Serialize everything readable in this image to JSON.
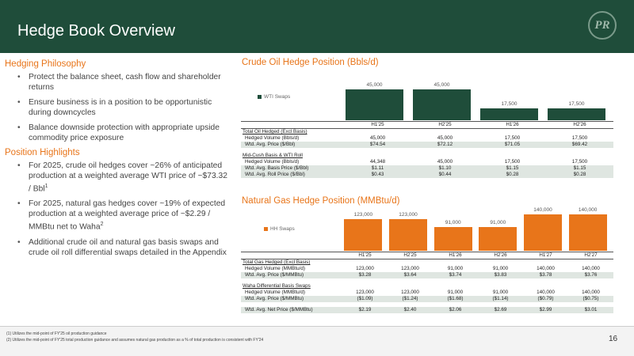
{
  "title": "Hedge Book Overview",
  "logo_text": "PR",
  "philosophy": {
    "heading": "Hedging Philosophy",
    "bullets": [
      "Protect the balance sheet, cash flow and shareholder returns",
      "Ensure business is in a position to be opportunistic during downcycles",
      "Balance downside protection with appropriate upside commodity price exposure"
    ]
  },
  "highlights": {
    "heading": "Position Highlights",
    "b1": "For 2025, crude oil hedges cover ~26% of anticipated production at a weighted average WTI price of ~$73.32 / Bbl",
    "b1_sup": "1",
    "b2": "For 2025, natural gas hedges cover ~19% of expected production at a weighted average price of ~$2.29 / MMBtu net to Waha",
    "b2_sup": "2",
    "b3": "Additional crude oil and natural gas basis swaps and crude oil roll differential swaps detailed in the Appendix"
  },
  "oil": {
    "title": "Crude Oil Hedge Position (Bbls/d)",
    "legend": "WTI Swaps",
    "total_label": "Total Oil Hedged (Excl Basis)",
    "hv_label": "Hedged Volume (Bbls/d)",
    "hv": [
      "45,000",
      "45,000",
      "17,500",
      "17,500"
    ],
    "price_label": "Wtd. Avg. Price ($/Bbl)",
    "price": [
      "$74.54",
      "$72.12",
      "$71.05",
      "$69.42"
    ],
    "basis_label": "Mid-Cush Basis & WTI Roll",
    "bhv_label": "Hedged Volume (Bbls/d)",
    "bhv": [
      "44,348",
      "45,000",
      "17,500",
      "17,500"
    ],
    "basis_price_label": "Wtd. Avg. Basis Price ($/Bbl)",
    "basis_price": [
      "$1.11",
      "$1.10",
      "$1.15",
      "$1.15"
    ],
    "roll_label": "Wtd. Avg. Roll Price ($/Bbl)",
    "roll": [
      "$0.43",
      "$0.44",
      "$0.28",
      "$0.28"
    ]
  },
  "gas": {
    "title": "Natural Gas Hedge Position (MMBtu/d)",
    "legend": "HH Swaps",
    "total_label": "Total Gas Hedged (Excl Basis)",
    "hv_label": "Hedged Volume (MMBtu/d)",
    "hv": [
      "123,000",
      "123,000",
      "91,000",
      "91,000",
      "140,000",
      "140,000"
    ],
    "price_label": "Wtd. Avg. Price ($/MMBtu)",
    "price": [
      "$3.28",
      "$3.64",
      "$3.74",
      "$3.83",
      "$3.78",
      "$3.76"
    ],
    "waha_label": "Waha Differential Basis Swaps",
    "whv_label": "Hedged Volume (MMBtu/d)",
    "whv": [
      "123,000",
      "123,000",
      "91,000",
      "91,000",
      "140,000",
      "140,000"
    ],
    "wprice_label": "Wtd. Avg. Price ($/MMBtu)",
    "wprice": [
      "($1.09)",
      "($1.24)",
      "($1.68)",
      "($1.14)",
      "($0.79)",
      "($0.75)"
    ],
    "net_label": "Wtd. Avg. Net Price ($/MMBtu)",
    "net": [
      "$2.19",
      "$2.40",
      "$2.06",
      "$2.69",
      "$2.99",
      "$3.01"
    ]
  },
  "chart_data": [
    {
      "type": "bar",
      "title": "Crude Oil Hedge Position (Bbls/d)",
      "categories": [
        "H1'25",
        "H2'25",
        "H1'26",
        "H2'26"
      ],
      "series": [
        {
          "name": "WTI Swaps",
          "values": [
            45000,
            45000,
            17500,
            17500
          ]
        }
      ],
      "labels": [
        "45,000",
        "45,000",
        "17,500",
        "17,500"
      ],
      "color": "#1f4d3a",
      "ylim": [
        0,
        45000
      ]
    },
    {
      "type": "bar",
      "title": "Natural Gas Hedge Position (MMBtu/d)",
      "categories": [
        "H1'25",
        "H2'25",
        "H1'26",
        "H2'26",
        "H1'27",
        "H2'27"
      ],
      "series": [
        {
          "name": "HH Swaps",
          "values": [
            123000,
            123000,
            91000,
            91000,
            140000,
            140000
          ]
        }
      ],
      "labels": [
        "123,000",
        "123,000",
        "91,000",
        "91,000",
        "140,000",
        "140,000"
      ],
      "color": "#e8751a",
      "ylim": [
        0,
        140000
      ]
    }
  ],
  "footnotes": [
    "(1)    Utilizes the mid-point of FY'25 oil production guidance",
    "(2)    Utilizes the mid-point of FY'25 total production guidance and assumes natural gas production as a % of total production is consistent with FY'24"
  ],
  "page_number": "16"
}
